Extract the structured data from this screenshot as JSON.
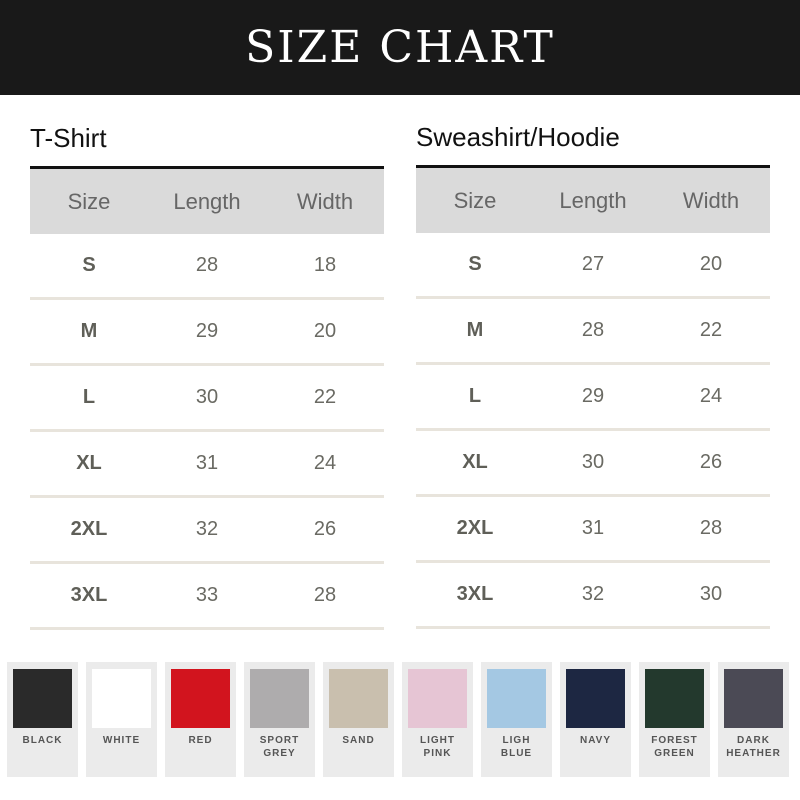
{
  "title": "SIZE CHART",
  "tables": [
    {
      "title": "T-Shirt",
      "headers": [
        "Size",
        "Length",
        "Width"
      ],
      "rows": [
        [
          "S",
          "28",
          "18"
        ],
        [
          "M",
          "29",
          "20"
        ],
        [
          "L",
          "30",
          "22"
        ],
        [
          "XL",
          "31",
          "24"
        ],
        [
          "2XL",
          "32",
          "26"
        ],
        [
          "3XL",
          "33",
          "28"
        ]
      ]
    },
    {
      "title": "Sweashirt/Hoodie",
      "headers": [
        "Size",
        "Length",
        "Width"
      ],
      "rows": [
        [
          "S",
          "27",
          "20"
        ],
        [
          "M",
          "28",
          "22"
        ],
        [
          "L",
          "29",
          "24"
        ],
        [
          "XL",
          "30",
          "26"
        ],
        [
          "2XL",
          "31",
          "28"
        ],
        [
          "3XL",
          "32",
          "30"
        ]
      ]
    }
  ],
  "colors": [
    {
      "label": "BLACK",
      "hex": "#2a2a2a"
    },
    {
      "label": "WHITE",
      "hex": "#ffffff"
    },
    {
      "label": "RED",
      "hex": "#d2141e"
    },
    {
      "label": "SPORT\nGREY",
      "hex": "#aeacad"
    },
    {
      "label": "SAND",
      "hex": "#c9bfae"
    },
    {
      "label": "LIGHT\nPINK",
      "hex": "#e6c5d4"
    },
    {
      "label": "LIGH\nBLUE",
      "hex": "#a4c8e3"
    },
    {
      "label": "NAVY",
      "hex": "#1d2742"
    },
    {
      "label": "FOREST\nGREEN",
      "hex": "#23392d"
    },
    {
      "label": "DARK\nHEATHER",
      "hex": "#4b4a55"
    }
  ]
}
